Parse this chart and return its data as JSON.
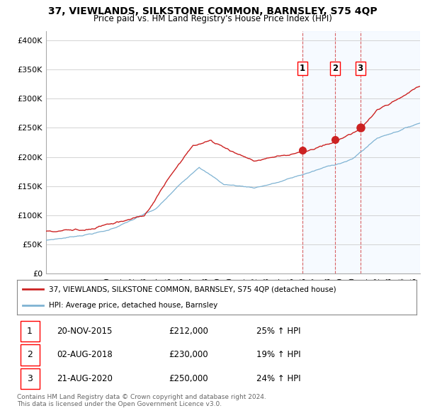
{
  "title": "37, VIEWLANDS, SILKSTONE COMMON, BARNSLEY, S75 4QP",
  "subtitle": "Price paid vs. HM Land Registry's House Price Index (HPI)",
  "ylabel_values": [
    "£0",
    "£50K",
    "£100K",
    "£150K",
    "£200K",
    "£250K",
    "£300K",
    "£350K",
    "£400K"
  ],
  "ytick_values": [
    0,
    50000,
    100000,
    150000,
    200000,
    250000,
    300000,
    350000,
    400000
  ],
  "ylim": [
    0,
    415000
  ],
  "xlim_start": 1995.0,
  "xlim_end": 2025.5,
  "sale_dates": [
    2015.896,
    2018.583,
    2020.638
  ],
  "sale_prices": [
    212000,
    230000,
    250000
  ],
  "sale_labels": [
    "1",
    "2",
    "3"
  ],
  "legend_line1": "37, VIEWLANDS, SILKSTONE COMMON, BARNSLEY, S75 4QP (detached house)",
  "legend_line2": "HPI: Average price, detached house, Barnsley",
  "table_data": [
    {
      "num": "1",
      "date": "20-NOV-2015",
      "price": "£212,000",
      "hpi": "25% ↑ HPI"
    },
    {
      "num": "2",
      "date": "02-AUG-2018",
      "price": "£230,000",
      "hpi": "19% ↑ HPI"
    },
    {
      "num": "3",
      "date": "21-AUG-2020",
      "price": "£250,000",
      "hpi": "24% ↑ HPI"
    }
  ],
  "footer1": "Contains HM Land Registry data © Crown copyright and database right 2024.",
  "footer2": "This data is licensed under the Open Government Licence v3.0.",
  "hpi_color": "#7fb3d3",
  "price_color": "#cc2222",
  "shade_color": "#ddeeff",
  "bg_color": "#ffffff",
  "grid_color": "#cccccc"
}
